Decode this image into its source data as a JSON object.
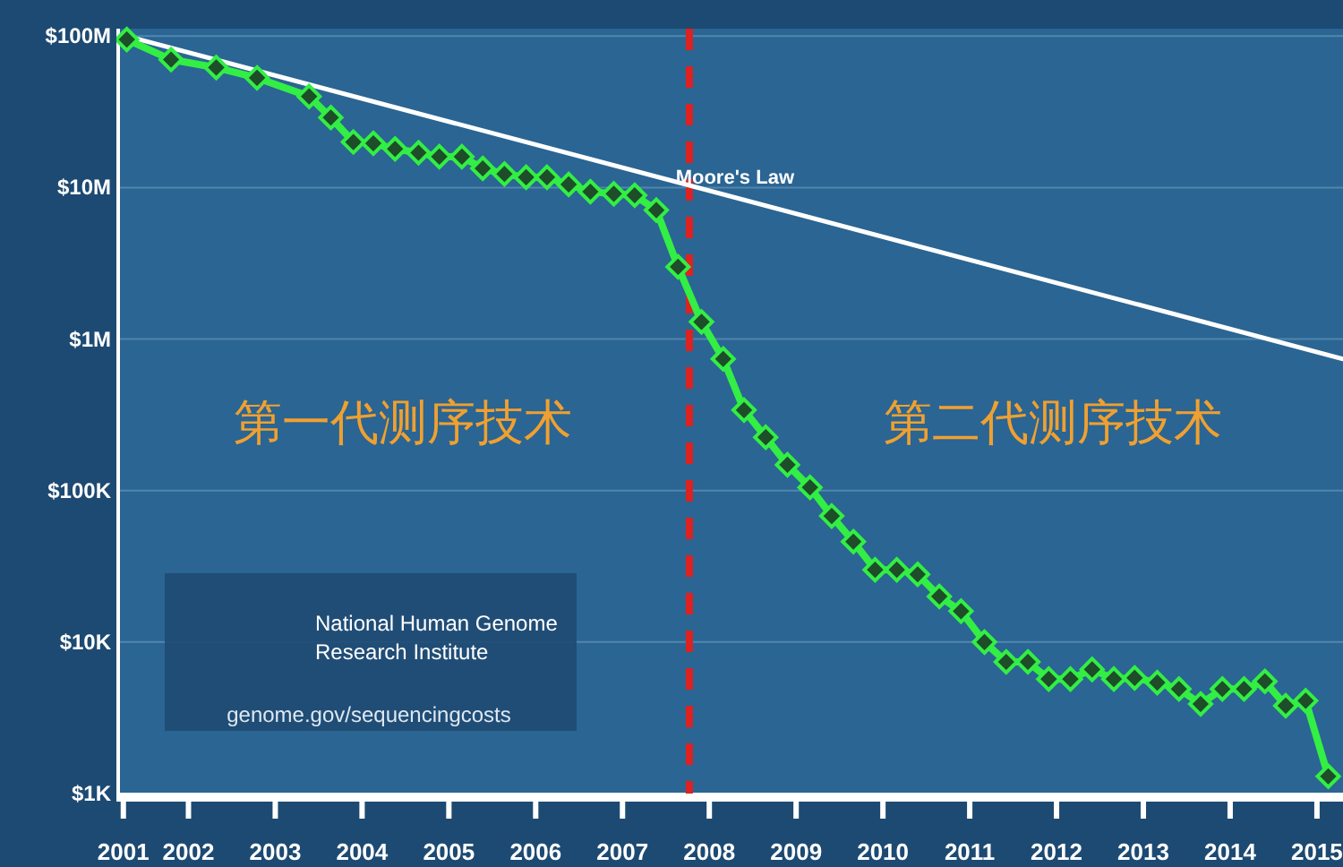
{
  "chart_data": {
    "type": "line",
    "log": "y",
    "grid": "y",
    "marker": "diamond",
    "line_style": "solid",
    "xlim": [
      2001.17,
      2015.3
    ],
    "ylim": [
      1000,
      112000000
    ],
    "xticks": [
      {
        "value": 2001.25,
        "label": "2001"
      },
      {
        "value": 2002,
        "label": "2002"
      },
      {
        "value": 2003,
        "label": "2003"
      },
      {
        "value": 2004,
        "label": "2004"
      },
      {
        "value": 2005,
        "label": "2005"
      },
      {
        "value": 2006,
        "label": "2006"
      },
      {
        "value": 2007,
        "label": "2007"
      },
      {
        "value": 2008,
        "label": "2008"
      },
      {
        "value": 2009,
        "label": "2009"
      },
      {
        "value": 2010,
        "label": "2010"
      },
      {
        "value": 2011,
        "label": "2011"
      },
      {
        "value": 2012,
        "label": "2012"
      },
      {
        "value": 2013,
        "label": "2013"
      },
      {
        "value": 2014,
        "label": "2014"
      },
      {
        "value": 2015,
        "label": "2015"
      }
    ],
    "yticks": [
      {
        "value": 1000,
        "label": "$1K"
      },
      {
        "value": 10000,
        "label": "$10K"
      },
      {
        "value": 100000,
        "label": "$100K"
      },
      {
        "value": 1000000,
        "label": "$1M"
      },
      {
        "value": 10000000,
        "label": "$10M"
      },
      {
        "value": 100000000,
        "label": "$100M"
      }
    ],
    "series": [
      {
        "color": "#33ee44",
        "x": [
          2001.29,
          2001.8,
          2002.32,
          2002.79,
          2003.39,
          2003.64,
          2003.9,
          2004.13,
          2004.38,
          2004.65,
          2004.89,
          2005.15,
          2005.39,
          2005.64,
          2005.89,
          2006.13,
          2006.38,
          2006.63,
          2006.9,
          2007.14,
          2007.39,
          2007.64,
          2007.91,
          2008.16,
          2008.4,
          2008.65,
          2008.9,
          2009.16,
          2009.41,
          2009.66,
          2009.91,
          2010.16,
          2010.4,
          2010.65,
          2010.9,
          2011.17,
          2011.42,
          2011.67,
          2011.91,
          2012.16,
          2012.41,
          2012.66,
          2012.9,
          2013.16,
          2013.41,
          2013.66,
          2013.91,
          2014.16,
          2014.4,
          2014.64,
          2014.87,
          2015.13
        ],
        "values": [
          95000000,
          70000000,
          62000000,
          53000000,
          40000000,
          29000000,
          20000000,
          19600000,
          18000000,
          17000000,
          16000000,
          16000000,
          13400000,
          12300000,
          11700000,
          11700000,
          10500000,
          9400000,
          9100000,
          8900000,
          7100000,
          3000000,
          1300000,
          740000,
          340000,
          225000,
          148000,
          105000,
          68000,
          46000,
          30000,
          30000,
          28000,
          20000,
          16000,
          10000,
          7400,
          7400,
          5700,
          5700,
          6600,
          5700,
          5800,
          5400,
          4900,
          3900,
          4900,
          4900,
          5500,
          3800,
          4100,
          1300
        ]
      },
      {
        "name": "Moore's Law",
        "color": "#ffffff",
        "marker": "none",
        "x": [
          2001.29,
          2015.3
        ],
        "values": [
          100000000,
          740000
        ]
      }
    ],
    "ref_lines": [
      {
        "axis": "x",
        "value": 2007.77,
        "color": "#dd2222",
        "line_style": "dashed"
      }
    ],
    "annotations": [
      "第一代测序技术",
      "第二代测序技术",
      "National Human Genome Research Institute",
      "genome.gov/sequencingcosts"
    ]
  }
}
